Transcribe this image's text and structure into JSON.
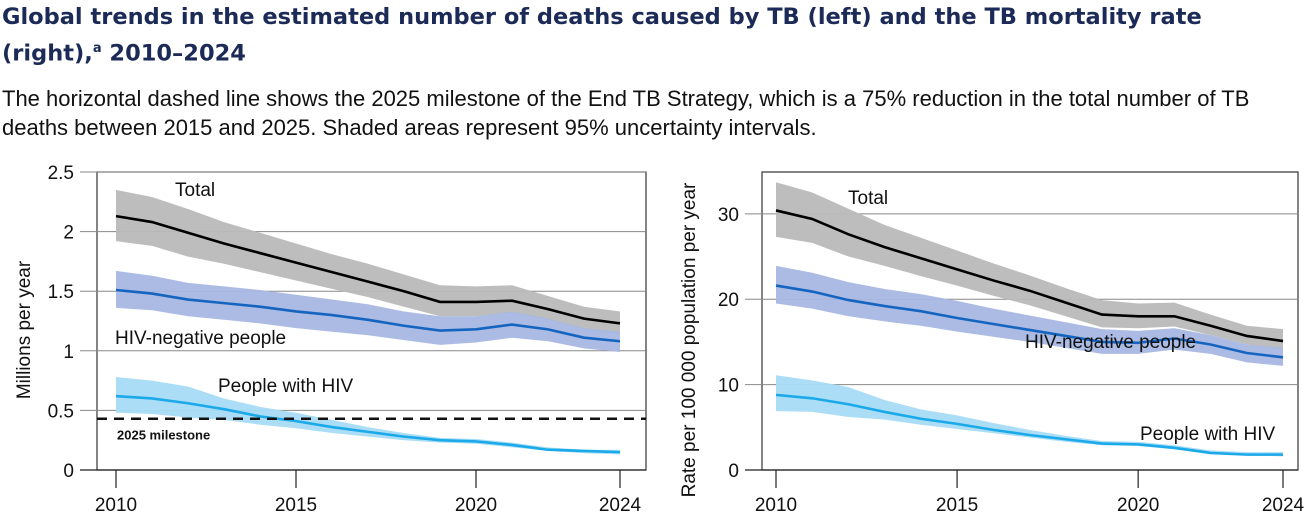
{
  "title": "Global trends in the estimated number of deaths caused by TB (left) and the TB mortality rate (right),",
  "title_sup": "a",
  "title_end": " 2010–2024",
  "subtitle": "The horizontal dashed line shows the 2025 milestone of the End TB Strategy, which is a 75% reduction in the total number of TB deaths between 2015 and 2025. Shaded areas represent 95% uncertainty intervals.",
  "chart_data": [
    {
      "type": "line",
      "ylabel": "Millions per year",
      "ylim": [
        0,
        2.5
      ],
      "yticks": [
        "0",
        "0.5",
        "1",
        "1.5",
        "2",
        "2.5"
      ],
      "ytick_values": [
        0,
        0.5,
        1,
        1.5,
        2,
        2.5
      ],
      "xticks": [
        2010,
        2015,
        2020,
        2024
      ],
      "grid": true,
      "x": [
        2010,
        2011,
        2012,
        2013,
        2014,
        2015,
        2016,
        2017,
        2018,
        2019,
        2020,
        2021,
        2022,
        2023,
        2024
      ],
      "milestone": {
        "label": "2025 milestone",
        "value": 0.43
      },
      "series": [
        {
          "name": "Total",
          "color": "#000000",
          "band": "#b9b9b9",
          "values": [
            2.13,
            2.08,
            1.99,
            1.9,
            1.82,
            1.74,
            1.66,
            1.58,
            1.5,
            1.41,
            1.41,
            1.42,
            1.35,
            1.27,
            1.23
          ],
          "lower": [
            1.92,
            1.88,
            1.79,
            1.73,
            1.66,
            1.59,
            1.52,
            1.45,
            1.37,
            1.29,
            1.29,
            1.32,
            1.26,
            1.18,
            1.14
          ],
          "upper": [
            2.35,
            2.29,
            2.19,
            2.08,
            1.99,
            1.9,
            1.81,
            1.73,
            1.64,
            1.55,
            1.54,
            1.55,
            1.46,
            1.37,
            1.33
          ]
        },
        {
          "name": "HIV-negative people",
          "color": "#1565c0",
          "band": "#a7b7e2",
          "values": [
            1.51,
            1.48,
            1.43,
            1.4,
            1.37,
            1.33,
            1.3,
            1.26,
            1.21,
            1.17,
            1.18,
            1.22,
            1.18,
            1.11,
            1.08
          ],
          "lower": [
            1.36,
            1.34,
            1.29,
            1.26,
            1.23,
            1.19,
            1.16,
            1.13,
            1.09,
            1.05,
            1.07,
            1.11,
            1.08,
            1.02,
            0.99
          ],
          "upper": [
            1.67,
            1.63,
            1.57,
            1.54,
            1.51,
            1.47,
            1.43,
            1.39,
            1.33,
            1.29,
            1.29,
            1.33,
            1.27,
            1.19,
            1.16
          ]
        },
        {
          "name": "People with HIV",
          "color": "#1ba9ea",
          "band": "#a6dcf6",
          "values": [
            0.62,
            0.6,
            0.56,
            0.51,
            0.45,
            0.41,
            0.36,
            0.32,
            0.28,
            0.25,
            0.24,
            0.21,
            0.17,
            0.16,
            0.15
          ],
          "lower": [
            0.48,
            0.47,
            0.44,
            0.42,
            0.38,
            0.35,
            0.31,
            0.28,
            0.25,
            0.23,
            0.22,
            0.19,
            0.16,
            0.14,
            0.13
          ],
          "upper": [
            0.78,
            0.75,
            0.7,
            0.6,
            0.53,
            0.48,
            0.42,
            0.36,
            0.31,
            0.27,
            0.26,
            0.23,
            0.19,
            0.17,
            0.17
          ]
        }
      ]
    },
    {
      "type": "line",
      "ylabel": "Rate per 100 000 population per year",
      "ylim": [
        0,
        34.9
      ],
      "yticks": [
        "0",
        "10",
        "20",
        "30"
      ],
      "ytick_values": [
        0,
        10,
        20,
        30
      ],
      "xticks": [
        2010,
        2015,
        2020,
        2024
      ],
      "grid": true,
      "x": [
        2010,
        2011,
        2012,
        2013,
        2014,
        2015,
        2016,
        2017,
        2018,
        2019,
        2020,
        2021,
        2022,
        2023,
        2024
      ],
      "series": [
        {
          "name": "Total",
          "color": "#000000",
          "band": "#b9b9b9",
          "values": [
            30.4,
            29.4,
            27.6,
            26.1,
            24.8,
            23.5,
            22.2,
            21.0,
            19.6,
            18.2,
            18.0,
            18.0,
            16.9,
            15.7,
            15.1
          ],
          "lower": [
            27.3,
            26.6,
            25.0,
            23.9,
            22.7,
            21.6,
            20.4,
            19.3,
            18.0,
            16.7,
            16.6,
            16.8,
            15.8,
            14.7,
            14.1
          ],
          "upper": [
            33.7,
            32.5,
            30.6,
            28.7,
            27.2,
            25.7,
            24.2,
            22.8,
            21.3,
            19.9,
            19.5,
            19.6,
            18.2,
            16.9,
            16.5
          ]
        },
        {
          "name": "HIV-negative people",
          "color": "#1565c0",
          "band": "#a7b7e2",
          "values": [
            21.6,
            20.9,
            19.9,
            19.2,
            18.6,
            17.8,
            17.1,
            16.4,
            15.7,
            15.0,
            14.9,
            15.4,
            14.7,
            13.7,
            13.2
          ],
          "lower": [
            19.5,
            18.9,
            18.0,
            17.4,
            16.9,
            16.2,
            15.6,
            15.0,
            14.3,
            13.6,
            13.6,
            14.1,
            13.6,
            12.6,
            12.2
          ],
          "upper": [
            23.9,
            23.1,
            22.0,
            21.2,
            20.6,
            19.8,
            18.9,
            18.1,
            17.3,
            16.5,
            16.3,
            16.6,
            15.8,
            14.7,
            14.3
          ]
        },
        {
          "name": "People with HIV",
          "color": "#1ba9ea",
          "band": "#a6dcf6",
          "values": [
            8.8,
            8.4,
            7.7,
            6.8,
            6.0,
            5.4,
            4.7,
            4.1,
            3.6,
            3.1,
            3.0,
            2.6,
            2.0,
            1.8,
            1.8
          ],
          "lower": [
            6.9,
            6.8,
            6.2,
            5.9,
            5.3,
            4.8,
            4.3,
            3.8,
            3.3,
            2.9,
            2.8,
            2.4,
            1.9,
            1.7,
            1.6
          ],
          "upper": [
            11.1,
            10.5,
            9.7,
            8.2,
            7.1,
            6.4,
            5.5,
            4.7,
            4.0,
            3.4,
            3.3,
            2.9,
            2.3,
            2.1,
            2.1
          ]
        }
      ]
    }
  ]
}
